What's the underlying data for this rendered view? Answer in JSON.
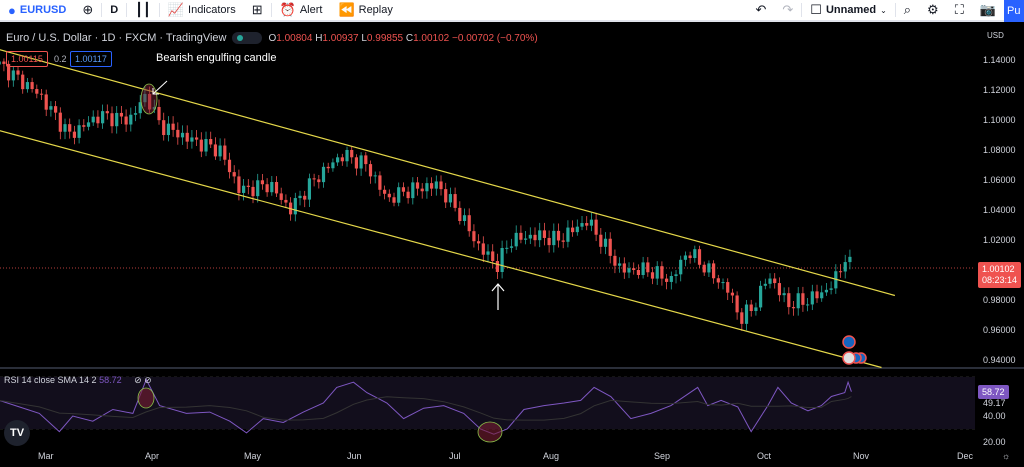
{
  "toolbar": {
    "symbol": "EURUSD",
    "interval": "D",
    "indicators": "Indicators",
    "alert": "Alert",
    "replay": "Replay",
    "layout_name": "Unnamed",
    "publish": "Pu"
  },
  "legend": {
    "title": "Euro / U.S. Dollar · 1D · FXCM · TradingView",
    "open_label": "O",
    "open": "1.00804",
    "high_label": "H",
    "high": "1.00937",
    "low_label": "L",
    "low": "0.99855",
    "close_label": "C",
    "close": "1.00102",
    "change": "−0.00702 (−0.70%)",
    "sell": "1.00115",
    "spread": "0.2",
    "buy": "1.00117"
  },
  "annotations": {
    "engulfing": "Bearish engulfing candle"
  },
  "price_axis": {
    "currency": "USD",
    "ticks": [
      "1.14000",
      "1.12000",
      "1.10000",
      "1.08000",
      "1.06000",
      "1.04000",
      "1.02000",
      "0.98000",
      "0.96000",
      "0.94000"
    ],
    "last_price": "1.00102",
    "countdown": "08:23:14"
  },
  "rsi": {
    "label": "RSI 14 close SMA 14 2",
    "value": "58.72",
    "sma_value": "49.17",
    "ticks": [
      "40.00",
      "20.00"
    ]
  },
  "time_axis": [
    "Mar",
    "Apr",
    "May",
    "Jun",
    "Jul",
    "Aug",
    "Sep",
    "Oct",
    "Nov",
    "Dec"
  ],
  "colors": {
    "up": "#26a69a",
    "down": "#ef5350",
    "channel": "#e5d84a",
    "rsi": "#7e57c2",
    "background": "#000000",
    "accent": "#2962ff"
  },
  "chart_data": {
    "type": "candlestick",
    "symbol": "EURUSD",
    "timeframe": "1D",
    "ylim": [
      0.93,
      1.15
    ],
    "closes": [
      [
        "2022-02-15",
        1.137
      ],
      [
        "2022-02-27",
        1.117
      ],
      [
        "2022-03-08",
        1.09
      ],
      [
        "2022-03-17",
        1.103
      ],
      [
        "2022-03-26",
        1.1
      ],
      [
        "2022-03-31",
        1.117
      ],
      [
        "2022-04-04",
        1.097
      ],
      [
        "2022-04-13",
        1.087
      ],
      [
        "2022-04-22",
        1.08
      ],
      [
        "2022-04-28",
        1.053
      ],
      [
        "2022-05-07",
        1.057
      ],
      [
        "2022-05-13",
        1.04
      ],
      [
        "2022-05-19",
        1.057
      ],
      [
        "2022-05-25",
        1.07
      ],
      [
        "2022-05-29",
        1.077
      ],
      [
        "2022-06-05",
        1.07
      ],
      [
        "2022-06-11",
        1.047
      ],
      [
        "2022-06-17",
        1.053
      ],
      [
        "2022-06-26",
        1.057
      ],
      [
        "2022-07-03",
        1.037
      ],
      [
        "2022-07-08",
        1.017
      ],
      [
        "2022-07-14",
        1.003
      ],
      [
        "2022-07-18",
        1.02
      ],
      [
        "2022-07-26",
        1.023
      ],
      [
        "2022-08-01",
        1.02
      ],
      [
        "2022-08-10",
        1.033
      ],
      [
        "2022-08-14",
        1.02
      ],
      [
        "2022-08-20",
        1.0
      ],
      [
        "2022-08-28",
        1.0
      ],
      [
        "2022-09-04",
        0.993
      ],
      [
        "2022-09-09",
        1.013
      ],
      [
        "2022-09-15",
        1.0
      ],
      [
        "2022-09-21",
        0.987
      ],
      [
        "2022-09-25",
        0.967
      ],
      [
        "2022-09-30",
        0.98
      ],
      [
        "2022-10-03",
        0.997
      ],
      [
        "2022-10-09",
        0.977
      ],
      [
        "2022-10-15",
        0.98
      ],
      [
        "2022-10-21",
        0.987
      ],
      [
        "2022-10-24",
        0.997
      ],
      [
        "2022-10-26",
        1.009
      ],
      [
        "2022-10-28",
        1.001
      ]
    ],
    "channel": {
      "upper": [
        [
          "2022-02-15",
          1.147
        ],
        [
          "2022-11-10",
          0.983
        ]
      ],
      "lower": [
        [
          "2022-02-15",
          1.093
        ],
        [
          "2022-11-06",
          0.935
        ]
      ]
    },
    "rsi": {
      "ylim": [
        15,
        75
      ],
      "levels": [
        70,
        50,
        30
      ],
      "values": [
        [
          "2022-02-15",
          52
        ],
        [
          "2022-02-21",
          47
        ],
        [
          "2022-02-27",
          42
        ],
        [
          "2022-03-05",
          28
        ],
        [
          "2022-03-09",
          40
        ],
        [
          "2022-03-15",
          36
        ],
        [
          "2022-03-21",
          45
        ],
        [
          "2022-03-27",
          42
        ],
        [
          "2022-03-31",
          68
        ],
        [
          "2022-04-04",
          48
        ],
        [
          "2022-04-12",
          42
        ],
        [
          "2022-04-19",
          43
        ],
        [
          "2022-04-25",
          36
        ],
        [
          "2022-04-30",
          27
        ],
        [
          "2022-05-05",
          38
        ],
        [
          "2022-05-11",
          35
        ],
        [
          "2022-05-17",
          43
        ],
        [
          "2022-05-23",
          50
        ],
        [
          "2022-05-27",
          62
        ],
        [
          "2022-06-01",
          66
        ],
        [
          "2022-06-05",
          58
        ],
        [
          "2022-06-11",
          50
        ],
        [
          "2022-06-16",
          38
        ],
        [
          "2022-06-22",
          46
        ],
        [
          "2022-06-28",
          48
        ],
        [
          "2022-07-04",
          42
        ],
        [
          "2022-07-09",
          30
        ],
        [
          "2022-07-13",
          26
        ],
        [
          "2022-07-17",
          30
        ],
        [
          "2022-07-22",
          45
        ],
        [
          "2022-07-28",
          48
        ],
        [
          "2022-08-03",
          50
        ],
        [
          "2022-08-08",
          52
        ],
        [
          "2022-08-12",
          62
        ],
        [
          "2022-08-17",
          55
        ],
        [
          "2022-08-23",
          38
        ],
        [
          "2022-08-29",
          42
        ],
        [
          "2022-09-04",
          48
        ],
        [
          "2022-09-12",
          62
        ],
        [
          "2022-09-15",
          48
        ],
        [
          "2022-09-19",
          52
        ],
        [
          "2022-09-24",
          47
        ],
        [
          "2022-09-28",
          28
        ],
        [
          "2022-10-03",
          48
        ],
        [
          "2022-10-06",
          62
        ],
        [
          "2022-10-10",
          50
        ],
        [
          "2022-10-15",
          44
        ],
        [
          "2022-10-19",
          48
        ],
        [
          "2022-10-22",
          55
        ],
        [
          "2022-10-26",
          58
        ],
        [
          "2022-10-27",
          66
        ],
        [
          "2022-10-28",
          58.72
        ]
      ]
    }
  }
}
